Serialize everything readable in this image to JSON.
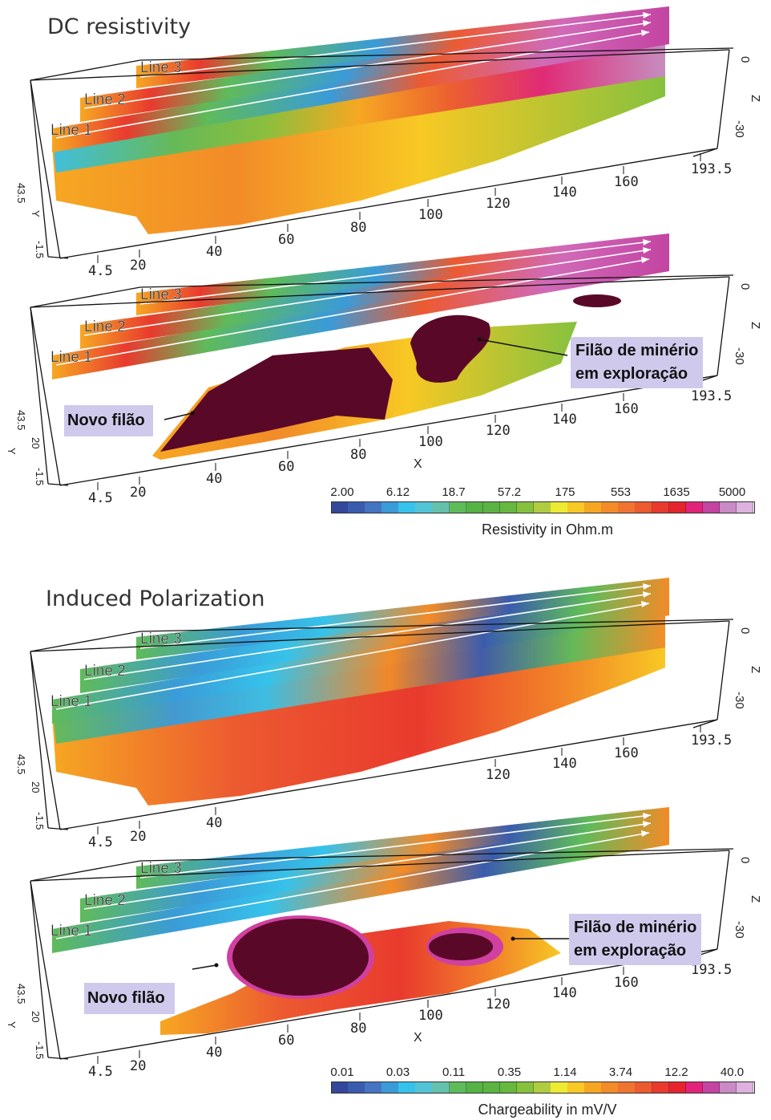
{
  "sections": [
    {
      "title": "DC resistivity"
    },
    {
      "title": "Induced Polarization"
    }
  ],
  "panels": [
    {
      "kind": "resistivity-full",
      "lines": [
        "Line 1",
        "Line 2",
        "Line 3"
      ],
      "x_ticks": [
        "4.5",
        "20",
        "40",
        "60",
        "80",
        "100",
        "120",
        "140",
        "160",
        "193.5"
      ],
      "y_ticks": [
        "43.5",
        "Y",
        "-1.5"
      ],
      "z_ticks": [
        "0",
        "Z",
        "-30"
      ],
      "x_label": ""
    },
    {
      "kind": "resistivity-body",
      "lines": [
        "Line 1",
        "Line 2",
        "Line 3"
      ],
      "x_ticks": [
        "4.5",
        "20",
        "40",
        "60",
        "80",
        "100",
        "120",
        "140",
        "160",
        "193.5"
      ],
      "y_ticks": [
        "43.5",
        "20",
        "-1.5",
        "Y"
      ],
      "z_ticks": [
        "0",
        "Z",
        "-30"
      ],
      "x_label": "X"
    },
    {
      "kind": "ip-full",
      "lines": [
        "Line 1",
        "Line 2",
        "Line 3"
      ],
      "x_ticks": [
        "4.5",
        "20",
        "40",
        "",
        "",
        "",
        "120",
        "140",
        "160",
        "193.5"
      ],
      "y_ticks": [
        "43.5",
        "20",
        "-1.5"
      ],
      "z_ticks": [
        "0",
        "Z",
        "-30"
      ],
      "x_label": ""
    },
    {
      "kind": "ip-body",
      "lines": [
        "Line 1",
        "Line 2",
        "Line 3"
      ],
      "x_ticks": [
        "4.5",
        "20",
        "40",
        "60",
        "80",
        "100",
        "120",
        "140",
        "160",
        "193.5"
      ],
      "y_ticks": [
        "43.5",
        "20",
        "-1.5",
        "Y"
      ],
      "z_ticks": [
        "0",
        "Z",
        "-30"
      ],
      "x_label": "X"
    }
  ],
  "annotations": {
    "resistivity": {
      "existing_lode": "Filão de minério em exploração",
      "existing_lode_l1": "Filão de minério",
      "existing_lode_l2": "em exploração",
      "new_lode": "Novo filão"
    },
    "ip": {
      "existing_lode_l1": "Filão de minério",
      "existing_lode_l2": "em exploração",
      "new_lode": "Novo filão"
    }
  },
  "colorbars": [
    {
      "label": "Resistivity in Ohm.m",
      "ticks": [
        "2.00",
        "6.12",
        "18.7",
        "57.2",
        "175",
        "553",
        "1635",
        "5000"
      ]
    },
    {
      "label": "Chargeability in mV/V",
      "ticks": [
        "0.01",
        "0.03",
        "0.11",
        "0.35",
        "1.14",
        "3.74",
        "12.2",
        "40.0"
      ]
    }
  ],
  "colorscale": [
    "#33489a",
    "#3a5cae",
    "#4474c2",
    "#3a9bd8",
    "#36c2ea",
    "#52c4d6",
    "#63c1ad",
    "#5fbb5a",
    "#55b245",
    "#5ab342",
    "#66b83e",
    "#86c13e",
    "#b0cc40",
    "#ecea32",
    "#f8c824",
    "#f6a722",
    "#f28b28",
    "#ef7430",
    "#ec5a30",
    "#e93a2e",
    "#e6242e",
    "#e2237a",
    "#c444a2",
    "#c98ac6",
    "#ddb2de"
  ],
  "body_color": "#5a0828"
}
